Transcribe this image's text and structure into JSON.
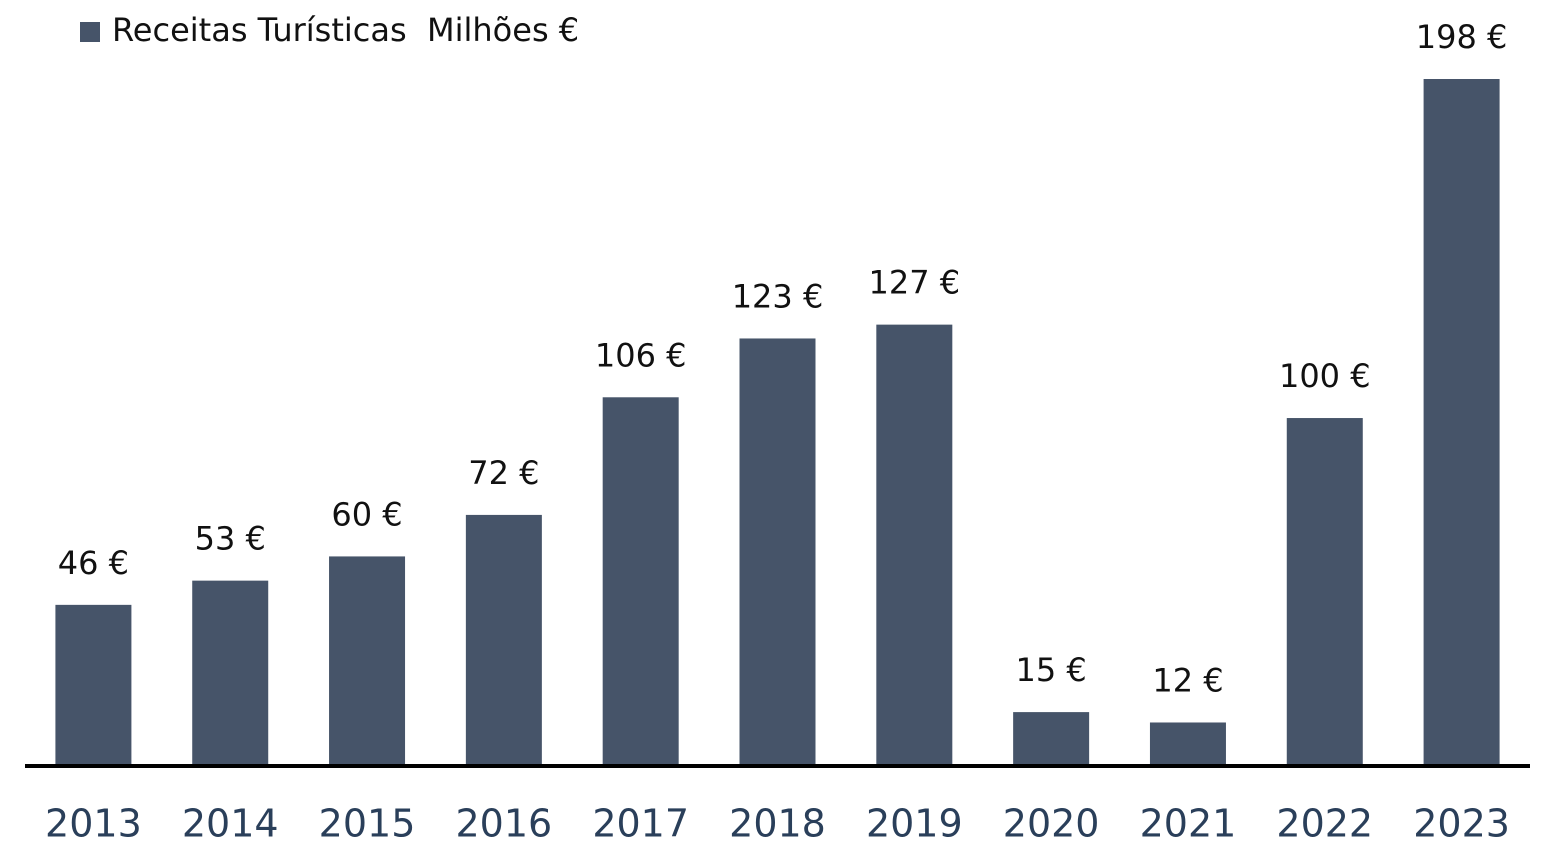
{
  "chart_data": {
    "type": "bar",
    "categories": [
      "2013",
      "2014",
      "2015",
      "2016",
      "2017",
      "2018",
      "2019",
      "2020",
      "2021",
      "2022",
      "2023"
    ],
    "series": [
      {
        "name": "Receitas Turísticas  Milhões €",
        "color": "#465469",
        "values": [
          46,
          53,
          60,
          72,
          106,
          123,
          127,
          15,
          12,
          100,
          198
        ],
        "value_labels": [
          "46 €",
          "53 €",
          "60 €",
          "72 €",
          "106 €",
          "123 €",
          "127 €",
          "15 €",
          "12 €",
          "100 €",
          "198 €"
        ]
      }
    ],
    "legend": "top-left"
  }
}
